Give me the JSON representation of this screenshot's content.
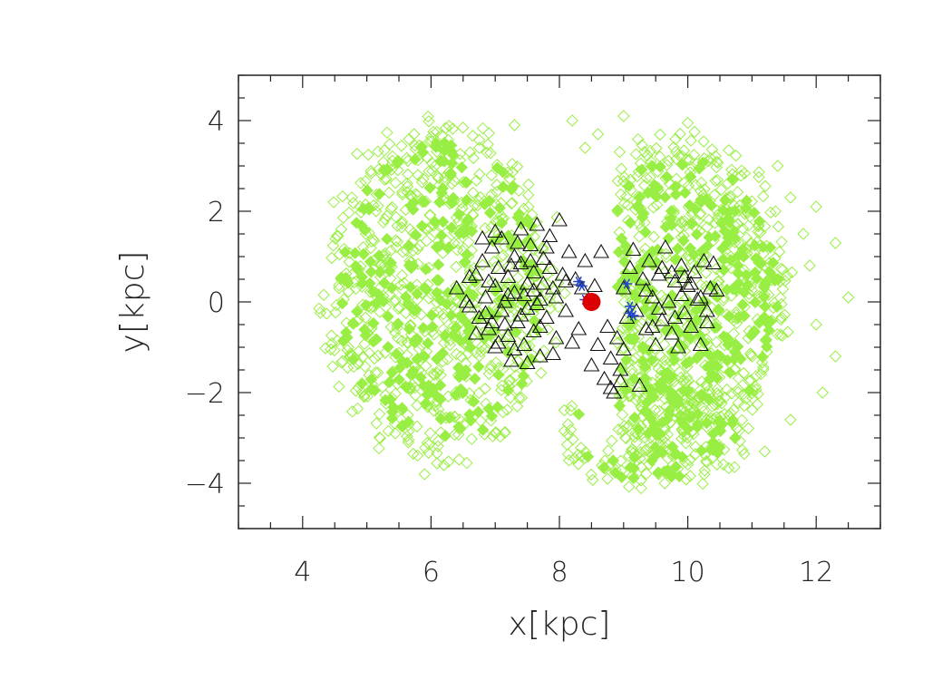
{
  "chart_data": {
    "type": "scatter",
    "title": "",
    "xlabel": "x[kpc]",
    "ylabel": "y[kpc]",
    "xlim": [
      3.0,
      13.0
    ],
    "ylim": [
      -5.0,
      5.0
    ],
    "xticks": [
      4,
      6,
      8,
      10,
      12
    ],
    "yticks": [
      -4,
      -2,
      0,
      2,
      4
    ],
    "xtick_labels": [
      "4",
      "6",
      "8",
      "10",
      "12"
    ],
    "ytick_labels": [
      "−4",
      "−2",
      "0",
      "2",
      "4"
    ],
    "grid": false,
    "legend": "none",
    "colors": {
      "diamonds": "#99ee44",
      "diamond_fill": "#99ee44",
      "triangles": "#111111",
      "stars": "#2244cc",
      "sun": "#dd0000",
      "frame": "#222222"
    },
    "series": [
      {
        "marker": "diamond",
        "color": "#99ee44",
        "regions": [
          {
            "shape": "filled-disk",
            "center": [
              6.15,
              0.2
            ],
            "radius_x": 1.95,
            "radius_y": 3.9,
            "cut_x_max": 8.2
          },
          {
            "shape": "filled-disk",
            "center": [
              9.9,
              0.2
            ],
            "radius_x": 1.8,
            "radius_y": 3.6,
            "cut_x_min": 8.9
          },
          {
            "shape": "filled-disk",
            "center": [
              9.4,
              -2.9
            ],
            "radius_x": 1.6,
            "radius_y": 1.3
          }
        ],
        "outliers": [
          [
            12.5,
            0.1
          ],
          [
            12.3,
            1.3
          ],
          [
            12.1,
            -2.0
          ],
          [
            12.3,
            -1.2
          ],
          [
            11.9,
            0.8
          ],
          [
            12.0,
            -0.5
          ],
          [
            11.2,
            -3.3
          ],
          [
            11.6,
            -2.6
          ],
          [
            5.9,
            -3.8
          ],
          [
            6.2,
            -3.6
          ],
          [
            7.3,
            3.9
          ],
          [
            8.2,
            4.0
          ],
          [
            9.0,
            4.1
          ],
          [
            10.0,
            3.95
          ],
          [
            8.6,
            3.7
          ],
          [
            8.4,
            3.4
          ],
          [
            11.6,
            2.3
          ],
          [
            11.8,
            1.5
          ],
          [
            12.0,
            2.1
          ],
          [
            11.4,
            3.0
          ]
        ]
      },
      {
        "marker": "triangle",
        "color": "#111111",
        "points": [
          [
            6.4,
            0.3
          ],
          [
            6.6,
            -0.1
          ],
          [
            6.7,
            0.6
          ],
          [
            6.75,
            -0.35
          ],
          [
            6.8,
            0.9
          ],
          [
            6.85,
            0.1
          ],
          [
            6.9,
            -0.6
          ],
          [
            6.95,
            1.2
          ],
          [
            7.0,
            0.35
          ],
          [
            7.0,
            -1.0
          ],
          [
            7.05,
            0.75
          ],
          [
            7.1,
            -0.2
          ],
          [
            7.1,
            1.4
          ],
          [
            7.15,
            0.0
          ],
          [
            7.2,
            -0.75
          ],
          [
            7.2,
            0.55
          ],
          [
            7.25,
            -1.3
          ],
          [
            7.3,
            1.0
          ],
          [
            7.3,
            0.2
          ],
          [
            7.35,
            -0.45
          ],
          [
            7.4,
            1.6
          ],
          [
            7.4,
            0.85
          ],
          [
            7.45,
            -0.95
          ],
          [
            7.5,
            0.4
          ],
          [
            7.5,
            -0.15
          ],
          [
            7.55,
            1.25
          ],
          [
            7.6,
            -0.65
          ],
          [
            7.6,
            0.65
          ],
          [
            7.65,
            1.7
          ],
          [
            7.7,
            0.05
          ],
          [
            7.7,
            -1.2
          ],
          [
            7.75,
            0.95
          ],
          [
            7.8,
            -0.35
          ],
          [
            7.85,
            1.45
          ],
          [
            7.9,
            0.3
          ],
          [
            7.95,
            -0.8
          ],
          [
            8.0,
            1.8
          ],
          [
            8.05,
            0.6
          ],
          [
            8.1,
            -0.2
          ],
          [
            8.15,
            1.1
          ],
          [
            6.55,
            0.0
          ],
          [
            6.7,
            -0.7
          ],
          [
            6.9,
            0.45
          ],
          [
            7.0,
            1.55
          ],
          [
            7.15,
            -0.5
          ],
          [
            7.3,
            -1.05
          ],
          [
            7.45,
            0.15
          ],
          [
            7.55,
            0.9
          ],
          [
            7.7,
            -0.55
          ],
          [
            7.85,
            0.75
          ],
          [
            6.85,
            -0.25
          ],
          [
            7.05,
            -0.9
          ],
          [
            7.25,
            0.8
          ],
          [
            7.35,
            1.3
          ],
          [
            7.6,
            0.25
          ],
          [
            7.8,
            1.2
          ],
          [
            7.95,
            0.1
          ],
          [
            8.25,
            0.5
          ],
          [
            8.3,
            -0.6
          ],
          [
            8.4,
            0.9
          ],
          [
            6.6,
            0.55
          ],
          [
            6.95,
            -0.45
          ],
          [
            7.2,
            0.15
          ],
          [
            7.4,
            -0.3
          ],
          [
            7.65,
            -0.05
          ],
          [
            7.75,
            0.4
          ],
          [
            7.9,
            -1.15
          ],
          [
            8.1,
            0.45
          ],
          [
            7.5,
            -1.35
          ],
          [
            6.8,
            1.4
          ],
          [
            8.5,
            -1.4
          ],
          [
            8.6,
            -0.95
          ],
          [
            8.65,
            1.1
          ],
          [
            8.7,
            -1.7
          ],
          [
            8.75,
            -0.55
          ],
          [
            8.8,
            -1.25
          ],
          [
            8.85,
            -2.0
          ],
          [
            8.9,
            -0.8
          ],
          [
            8.95,
            -1.5
          ],
          [
            9.0,
            0.3
          ],
          [
            9.05,
            -0.35
          ],
          [
            9.1,
            0.75
          ],
          [
            9.15,
            1.15
          ],
          [
            9.2,
            -0.2
          ],
          [
            9.25,
            -1.85
          ],
          [
            9.3,
            0.5
          ],
          [
            9.35,
            -0.6
          ],
          [
            9.4,
            0.9
          ],
          [
            9.45,
            0.1
          ],
          [
            9.5,
            -0.95
          ],
          [
            9.55,
            0.6
          ],
          [
            9.6,
            -0.4
          ],
          [
            9.65,
            1.2
          ],
          [
            9.7,
            0.0
          ],
          [
            9.75,
            -0.7
          ],
          [
            9.8,
            0.45
          ],
          [
            9.85,
            -1.0
          ],
          [
            9.9,
            0.8
          ],
          [
            9.95,
            -0.25
          ],
          [
            10.0,
            0.35
          ],
          [
            10.05,
            -0.55
          ],
          [
            10.1,
            0.65
          ],
          [
            10.15,
            0.05
          ],
          [
            10.2,
            -0.95
          ],
          [
            10.25,
            0.9
          ],
          [
            10.3,
            -0.2
          ],
          [
            10.35,
            0.3
          ],
          [
            10.4,
            0.85
          ],
          [
            10.45,
            0.25
          ],
          [
            10.3,
            -0.45
          ],
          [
            9.35,
            0.25
          ],
          [
            9.55,
            -0.15
          ],
          [
            9.75,
            0.65
          ],
          [
            9.9,
            0.15
          ],
          [
            10.05,
            0.4
          ],
          [
            9.6,
            0.75
          ],
          [
            9.8,
            -0.35
          ],
          [
            9.95,
            0.55
          ],
          [
            10.2,
            0.1
          ],
          [
            9.45,
            -0.55
          ],
          [
            8.2,
            -0.9
          ],
          [
            8.35,
            0.3
          ],
          [
            8.55,
            0.35
          ],
          [
            8.8,
            -1.9
          ],
          [
            9.0,
            -1.05
          ],
          [
            8.95,
            -1.75
          ]
        ]
      },
      {
        "marker": "star",
        "color": "#2244cc",
        "points": [
          [
            8.3,
            0.45
          ],
          [
            8.35,
            0.35
          ],
          [
            8.4,
            0.05
          ],
          [
            9.05,
            0.4
          ],
          [
            9.1,
            -0.1
          ],
          [
            9.1,
            -0.25
          ],
          [
            9.15,
            -0.3
          ]
        ]
      },
      {
        "marker": "filled-circle",
        "color": "#dd0000",
        "points": [
          [
            8.5,
            0.0
          ]
        ]
      }
    ]
  }
}
